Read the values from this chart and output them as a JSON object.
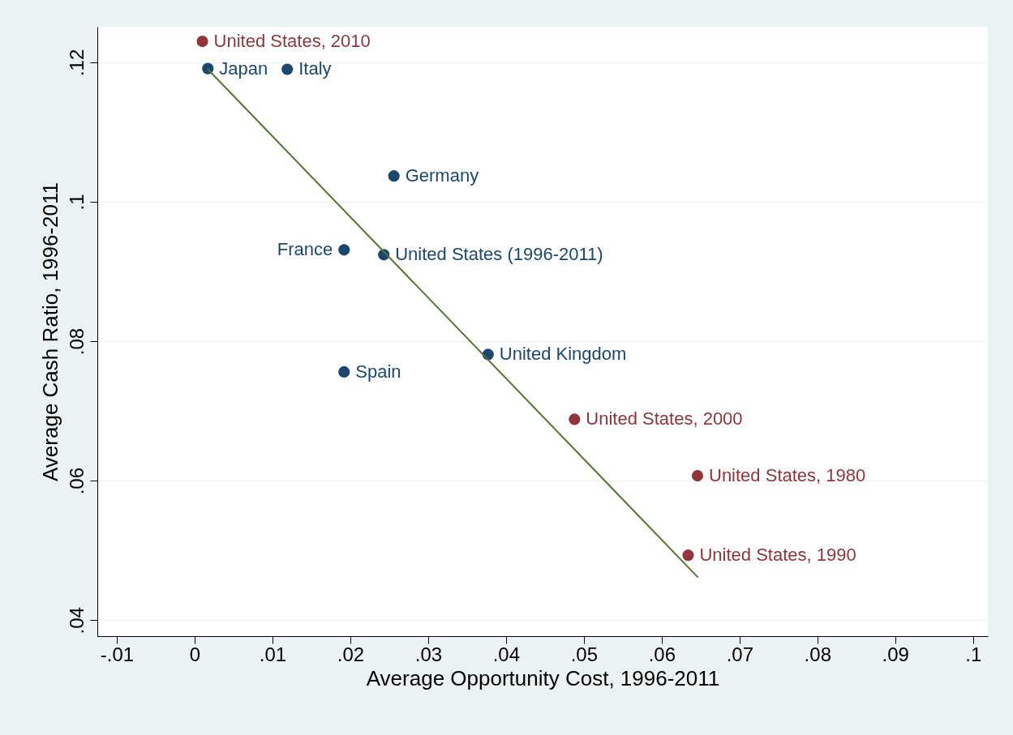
{
  "chart_data": {
    "type": "scatter",
    "xlabel": "Average Opportunity Cost, 1996-2011",
    "ylabel": "Average Cash Ratio, 1996-2011",
    "xlim": [
      -0.0125,
      0.1019
    ],
    "ylim": [
      0.0377,
      0.1251
    ],
    "xticks": [
      {
        "value": -0.01,
        "label": "-.01"
      },
      0,
      {
        "value": 0.01,
        "label": ".01"
      },
      {
        "value": 0.02,
        "label": ".02"
      },
      {
        "value": 0.03,
        "label": ".03"
      },
      {
        "value": 0.04,
        "label": ".04"
      },
      {
        "value": 0.05,
        "label": ".05"
      },
      {
        "value": 0.06,
        "label": ".06"
      },
      {
        "value": 0.07,
        "label": ".07"
      },
      {
        "value": 0.08,
        "label": ".08"
      },
      {
        "value": 0.09,
        "label": ".09"
      },
      {
        "value": 0.1,
        "label": ".1"
      }
    ],
    "yticks": [
      {
        "value": 0.04,
        "label": ".04"
      },
      {
        "value": 0.06,
        "label": ".06"
      },
      {
        "value": 0.08,
        "label": ".08"
      },
      {
        "value": 0.1,
        "label": ".1"
      },
      {
        "value": 0.12,
        "label": ".12"
      }
    ],
    "grid": "y",
    "series": [
      {
        "marker": "circle",
        "color": "#1a476f",
        "x": [
          0.0017,
          0.0119,
          0.0256,
          0.0192,
          0.0243,
          0.0377,
          0.0192
        ],
        "values": [
          0.1191,
          0.119,
          0.1037,
          0.0931,
          0.0924,
          0.0781,
          0.0756
        ]
      },
      {
        "marker": "circle",
        "color": "#90353b",
        "x": [
          0.001,
          0.0488,
          0.0646,
          0.0634
        ],
        "values": [
          0.123,
          0.0688,
          0.0607,
          0.0493
        ]
      },
      {
        "type": "line",
        "color": "#55752f",
        "x": [
          0.0017,
          0.0646
        ],
        "values": [
          0.119,
          0.0462
        ]
      }
    ],
    "annotations": [
      {
        "text": "Japan",
        "x": 0.0017,
        "y": 0.1191
      },
      {
        "text": "Italy",
        "x": 0.0119,
        "y": 0.119
      },
      {
        "text": "Germany",
        "x": 0.0256,
        "y": 0.1037
      },
      {
        "text": "France",
        "x": 0.0192,
        "y": 0.0931
      },
      {
        "text": "United States (1996-2011)",
        "x": 0.0243,
        "y": 0.0924
      },
      {
        "text": "United Kingdom",
        "x": 0.0377,
        "y": 0.0781
      },
      {
        "text": "Spain",
        "x": 0.0192,
        "y": 0.0756
      },
      {
        "text": "United States, 2010",
        "x": 0.001,
        "y": 0.123
      },
      {
        "text": "United States, 2000",
        "x": 0.0488,
        "y": 0.0688
      },
      {
        "text": "United States, 1980",
        "x": 0.0646,
        "y": 0.0607
      },
      {
        "text": "United States, 1990",
        "x": 0.0634,
        "y": 0.0493
      }
    ]
  }
}
